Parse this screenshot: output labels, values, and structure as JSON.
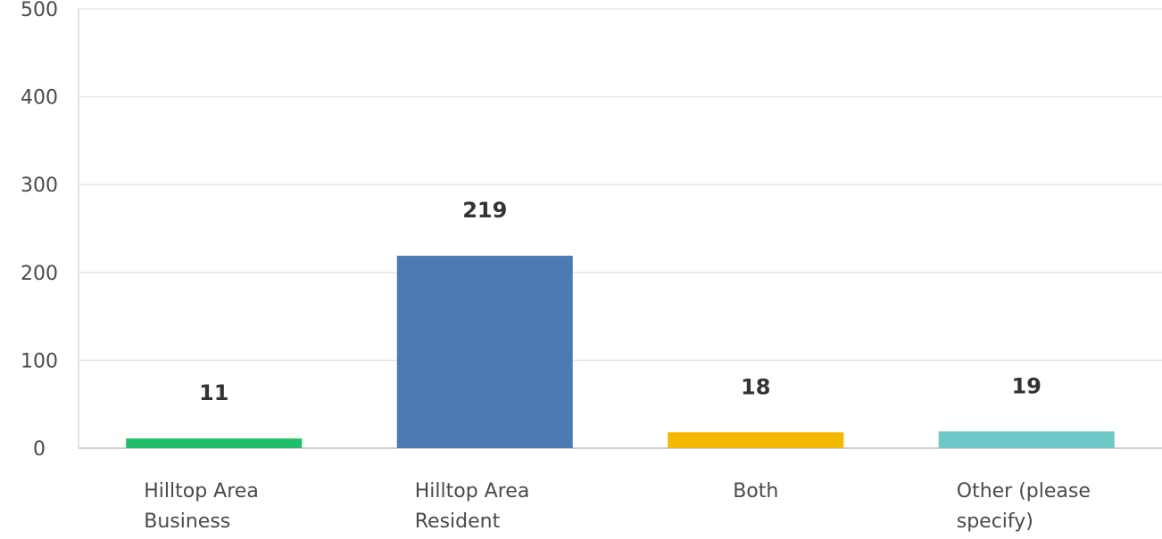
{
  "chart_data": {
    "type": "bar",
    "categories": [
      [
        "Hilltop Area",
        "Business"
      ],
      [
        "Hilltop Area",
        "Resident"
      ],
      [
        "Both"
      ],
      [
        "Other (please",
        "specify)"
      ]
    ],
    "values": [
      11,
      219,
      18,
      19
    ],
    "value_labels": [
      "11",
      "219",
      "18",
      "19"
    ],
    "colors": [
      "#1fbf69",
      "#4d7ab3",
      "#f5b800",
      "#6cc7c7"
    ],
    "ylim": [
      0,
      500
    ],
    "yticks": [
      0,
      100,
      200,
      300,
      400,
      500
    ],
    "grid": true,
    "title": "",
    "xlabel": "",
    "ylabel": ""
  }
}
